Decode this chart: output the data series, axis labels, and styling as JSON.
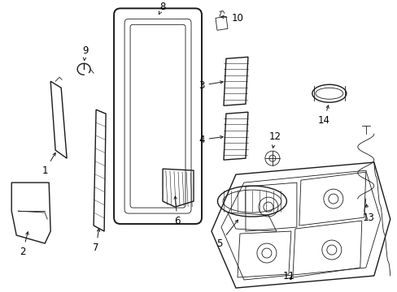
{
  "background_color": "#ffffff",
  "line_color": "#1a1a1a",
  "text_color": "#000000",
  "figsize": [
    4.89,
    3.6
  ],
  "dpi": 100,
  "label_fontsize": 8.5
}
